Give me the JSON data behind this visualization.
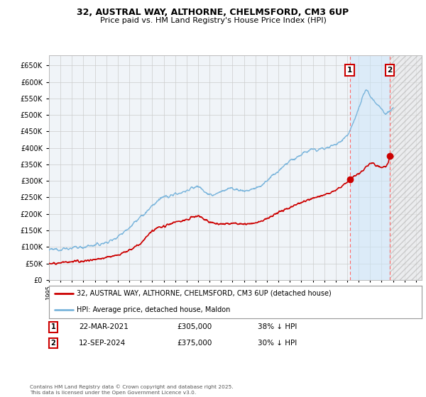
{
  "title_line1": "32, AUSTRAL WAY, ALTHORNE, CHELMSFORD, CM3 6UP",
  "title_line2": "Price paid vs. HM Land Registry's House Price Index (HPI)",
  "background_color": "#ffffff",
  "plot_bg_color": "#f0f4f8",
  "grid_color": "#cccccc",
  "hpi_color": "#7ab5dc",
  "price_color": "#cc0000",
  "sale1_date_x": 2021.22,
  "sale2_date_x": 2024.71,
  "sale1_price": 305000,
  "sale2_price": 375000,
  "sale1_label": "22-MAR-2021",
  "sale2_label": "12-SEP-2024",
  "sale1_pct": "38% ↓ HPI",
  "sale2_pct": "30% ↓ HPI",
  "footer_text": "Contains HM Land Registry data © Crown copyright and database right 2025.\nThis data is licensed under the Open Government Licence v3.0.",
  "legend_label1": "32, AUSTRAL WAY, ALTHORNE, CHELMSFORD, CM3 6UP (detached house)",
  "legend_label2": "HPI: Average price, detached house, Maldon",
  "xlim_min": 1995.0,
  "xlim_max": 2027.5,
  "ylim_min": 0,
  "ylim_max": 680000,
  "shade_between_color": "#ddeeff",
  "shade_after_color": "#dddddd"
}
